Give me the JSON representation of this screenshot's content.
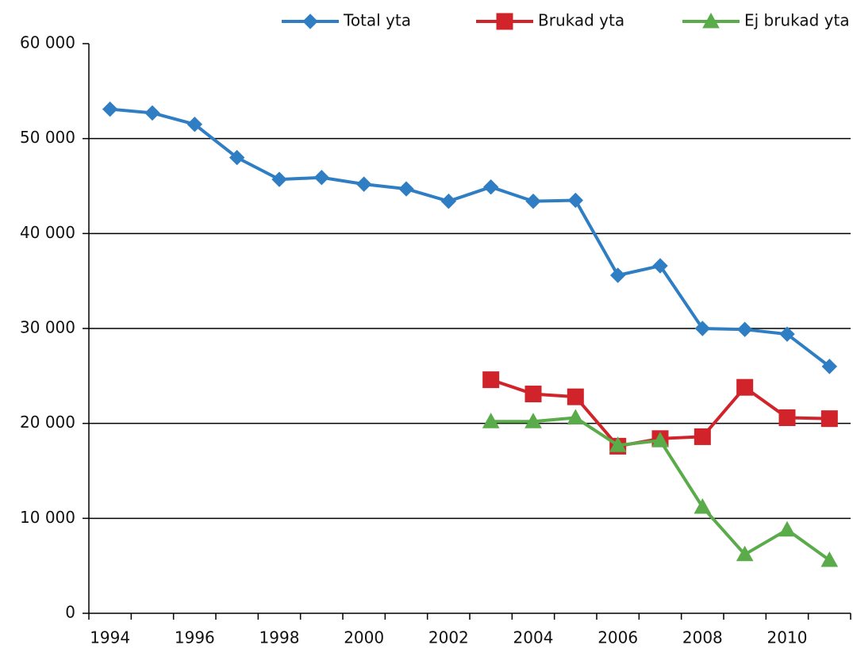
{
  "chart_data": {
    "type": "line",
    "categories": [
      1994,
      null,
      1996,
      null,
      1998,
      null,
      2000,
      null,
      2002,
      null,
      2004,
      null,
      2006,
      null,
      2008,
      null,
      2010,
      null
    ],
    "series": [
      {
        "name": "Total yta",
        "color": "#2f7ec3",
        "marker": "diamond",
        "values": [
          53100,
          52700,
          51500,
          48000,
          45700,
          45900,
          45200,
          44700,
          43400,
          44900,
          43400,
          43500,
          35600,
          36600,
          30000,
          29900,
          29400,
          26000
        ]
      },
      {
        "name": "Brukad yta",
        "color": "#d0232a",
        "marker": "square",
        "values": [
          null,
          null,
          null,
          null,
          null,
          null,
          null,
          null,
          null,
          24600,
          23100,
          22800,
          17600,
          18400,
          18600,
          23800,
          20600,
          20500
        ]
      },
      {
        "name": "Ej brukad yta",
        "color": "#5aab4a",
        "marker": "triangle",
        "values": [
          null,
          null,
          null,
          null,
          null,
          null,
          null,
          null,
          null,
          20200,
          20200,
          20600,
          17700,
          18200,
          11200,
          6200,
          8800,
          5600
        ]
      }
    ],
    "ylim": [
      0,
      60000
    ],
    "yticks": [
      0,
      {
        "value": 10000,
        "label": "10 000"
      },
      {
        "value": 20000,
        "label": "20 000"
      },
      {
        "value": 30000,
        "label": "30 000"
      },
      {
        "value": 40000,
        "label": "40 000"
      },
      {
        "value": 50000,
        "label": "50 000"
      },
      {
        "value": 60000,
        "label": "60 000"
      }
    ],
    "grid": true,
    "legend": "top"
  }
}
